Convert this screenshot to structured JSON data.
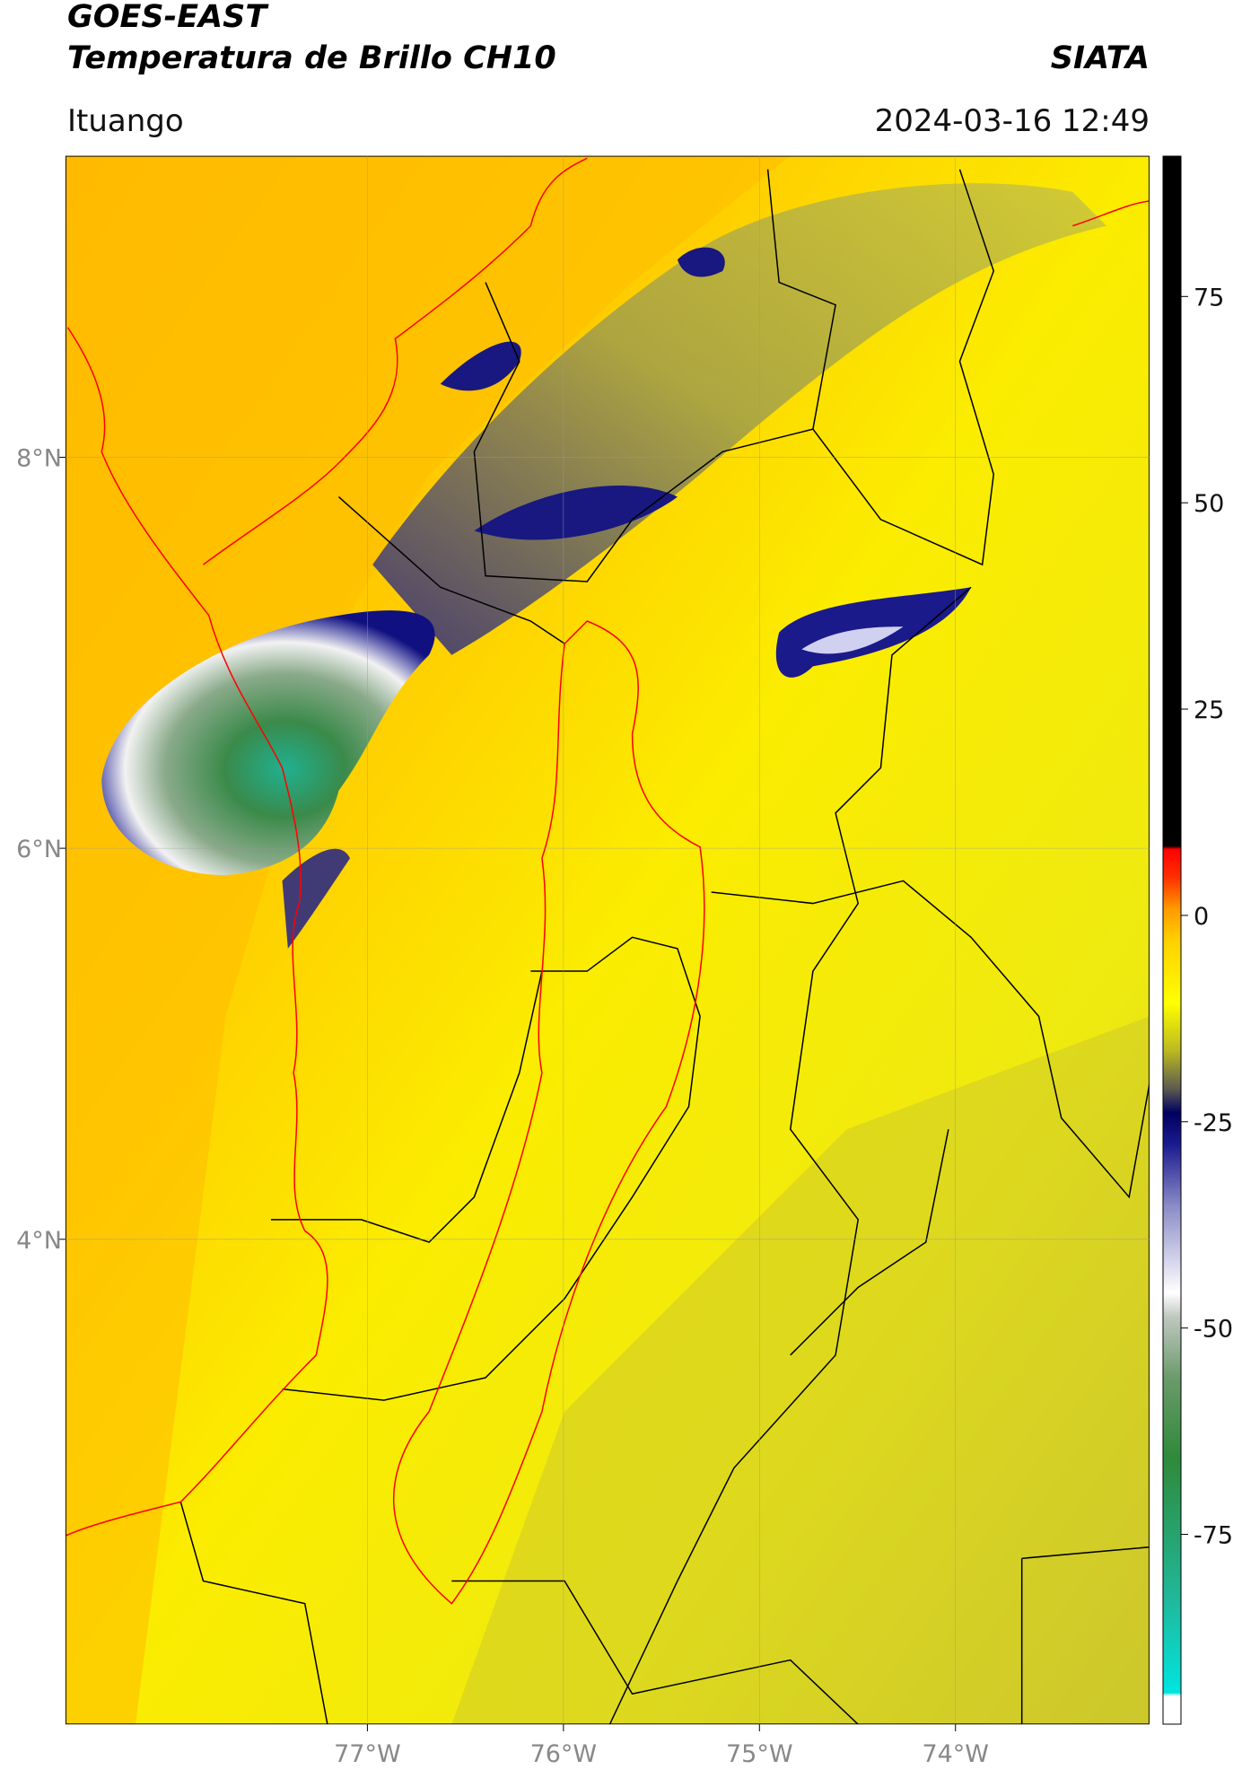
{
  "header": {
    "title": "GOES-EAST",
    "subtitle": "Temperatura de Brillo CH10",
    "source": "SIATA",
    "location": "Ituango",
    "datetime": "2024-03-16 12:49"
  },
  "map": {
    "xlim": [
      -78.54,
      -73.01
    ],
    "ylim": [
      1.52,
      9.54
    ],
    "xticks": [
      {
        "value": -77,
        "label": "77°W"
      },
      {
        "value": -76,
        "label": "76°W"
      },
      {
        "value": -75,
        "label": "75°W"
      },
      {
        "value": -74,
        "label": "74°W"
      }
    ],
    "yticks": [
      {
        "value": 8,
        "label": "8°N"
      },
      {
        "value": 6,
        "label": "6°N"
      },
      {
        "value": 4,
        "label": "4°N"
      }
    ],
    "grid": true
  },
  "colorbar": {
    "lim": [
      -98,
      92
    ],
    "ticks": [
      75,
      50,
      25,
      0,
      -25,
      -50,
      -75
    ]
  }
}
